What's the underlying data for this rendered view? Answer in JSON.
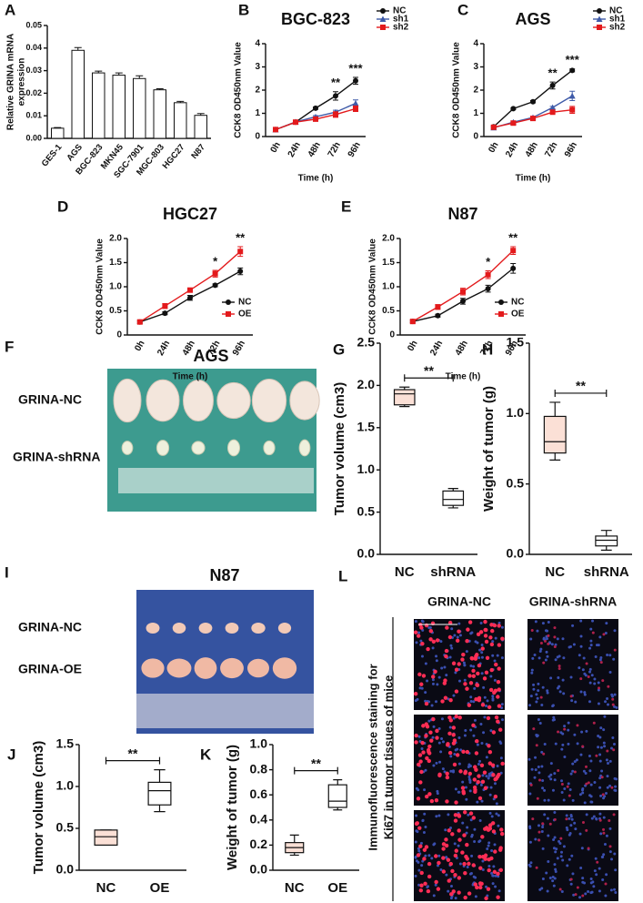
{
  "chart_data": [
    {
      "type": "bar",
      "panel": "A",
      "y_label": [
        "Relative GRINA mRNA",
        "expression"
      ],
      "categories": [
        "GES-1",
        "AGS",
        "BGC-823",
        "MKN45",
        "SGC-7901",
        "MGC-803",
        "HGC27",
        "N87"
      ],
      "values": [
        0.0045,
        0.039,
        0.029,
        0.028,
        0.0265,
        0.0215,
        0.0158,
        0.0102
      ],
      "errors": [
        0.0003,
        0.0012,
        0.0008,
        0.001,
        0.0012,
        0.0005,
        0.0006,
        0.0008
      ],
      "color": "#ffffff",
      "ylim": [
        0,
        0.05
      ],
      "yticks": [
        {
          "value": 0,
          "label": "0.00"
        },
        {
          "value": 0.01,
          "label": "0.01"
        },
        {
          "value": 0.02,
          "label": "0.02"
        },
        {
          "value": 0.03,
          "label": "0.03"
        },
        {
          "value": 0.04,
          "label": "0.04"
        },
        {
          "value": 0.05,
          "label": "0.05"
        }
      ]
    },
    {
      "type": "line",
      "panel": "B",
      "title": "BGC-823",
      "y_label": "CCK8 OD450nm Value",
      "x_label": "Time (h)",
      "categories": [
        "0h",
        "24h",
        "48h",
        "72h",
        "96h"
      ],
      "ylim": [
        0,
        4
      ],
      "yticks": [
        0,
        1,
        2,
        3,
        4
      ],
      "legend": "upper right",
      "series": [
        {
          "name": "NC",
          "color": "#111111",
          "marker": "circle",
          "values": [
            0.3,
            0.62,
            1.22,
            1.75,
            2.4
          ],
          "errors": [
            0.05,
            0.04,
            0.05,
            0.18,
            0.15
          ]
        },
        {
          "name": "sh1",
          "color": "#3f5ba9",
          "marker": "triangle",
          "values": [
            0.3,
            0.63,
            0.85,
            1.05,
            1.43
          ],
          "errors": [
            0.05,
            0.04,
            0.05,
            0.08,
            0.15
          ]
        },
        {
          "name": "sh2",
          "color": "#e31a1c",
          "marker": "square",
          "values": [
            0.3,
            0.62,
            0.75,
            0.95,
            1.2
          ],
          "errors": [
            0.05,
            0.04,
            0.05,
            0.12,
            0.12
          ]
        }
      ],
      "annotations": [
        {
          "text": "**",
          "at": "72h"
        },
        {
          "text": "***",
          "at": "96h"
        }
      ]
    },
    {
      "type": "line",
      "panel": "C",
      "title": "AGS",
      "y_label": "CCK8 OD450nm Value",
      "x_label": "Time (h)",
      "categories": [
        "0h",
        "24h",
        "48h",
        "72h",
        "96h"
      ],
      "ylim": [
        0,
        4
      ],
      "yticks": [
        0,
        1,
        2,
        3,
        4
      ],
      "legend": "upper right",
      "series": [
        {
          "name": "NC",
          "color": "#111111",
          "marker": "circle",
          "values": [
            0.42,
            1.2,
            1.5,
            2.2,
            2.85
          ],
          "errors": [
            0.05,
            0.04,
            0.05,
            0.15,
            0.06
          ]
        },
        {
          "name": "sh1",
          "color": "#3f5ba9",
          "marker": "triangle",
          "values": [
            0.38,
            0.62,
            0.82,
            1.25,
            1.75
          ],
          "errors": [
            0.05,
            0.04,
            0.05,
            0.05,
            0.2
          ]
        },
        {
          "name": "sh2",
          "color": "#e31a1c",
          "marker": "square",
          "values": [
            0.4,
            0.58,
            0.78,
            1.05,
            1.15
          ],
          "errors": [
            0.05,
            0.04,
            0.05,
            0.05,
            0.15
          ]
        }
      ],
      "annotations": [
        {
          "text": "**",
          "at": "72h"
        },
        {
          "text": "***",
          "at": "96h"
        }
      ]
    },
    {
      "type": "line",
      "panel": "D",
      "title": "HGC27",
      "y_label": "CCK8 OD450nm Value",
      "x_label": "Time (h)",
      "categories": [
        "0h",
        "24h",
        "48h",
        "72h",
        "96h"
      ],
      "ylim": [
        0,
        2
      ],
      "yticks": [
        0,
        0.5,
        {
          "value": 1,
          "label": "1.0"
        },
        1.5,
        {
          "value": 2,
          "label": "2.0"
        }
      ],
      "legend": "lower right",
      "series": [
        {
          "name": "NC",
          "color": "#111111",
          "marker": "circle",
          "values": [
            0.27,
            0.45,
            0.77,
            1.03,
            1.32
          ],
          "errors": [
            0.03,
            0.03,
            0.05,
            0.03,
            0.07
          ]
        },
        {
          "name": "OE",
          "color": "#e31a1c",
          "marker": "square",
          "values": [
            0.27,
            0.6,
            0.93,
            1.27,
            1.73
          ],
          "errors": [
            0.03,
            0.05,
            0.03,
            0.07,
            0.1
          ]
        }
      ],
      "annotations": [
        {
          "text": "*",
          "at": "72h"
        },
        {
          "text": "**",
          "at": "96h"
        }
      ]
    },
    {
      "type": "line",
      "panel": "E",
      "title": "N87",
      "y_label": "CCK8 OD450nm Value",
      "x_label": "Time (h)",
      "categories": [
        "0h",
        "24h",
        "48h",
        "72h",
        "96h"
      ],
      "ylim": [
        0,
        2
      ],
      "yticks": [
        0,
        0.5,
        {
          "value": 1,
          "label": "1.0"
        },
        1.5,
        {
          "value": 2,
          "label": "2.0"
        }
      ],
      "legend": "lower right",
      "series": [
        {
          "name": "NC",
          "color": "#111111",
          "marker": "circle",
          "values": [
            0.28,
            0.4,
            0.7,
            0.96,
            1.38
          ],
          "errors": [
            0.03,
            0.03,
            0.06,
            0.07,
            0.1
          ]
        },
        {
          "name": "OE",
          "color": "#e31a1c",
          "marker": "square",
          "values": [
            0.28,
            0.58,
            0.9,
            1.25,
            1.75
          ],
          "errors": [
            0.03,
            0.05,
            0.07,
            0.08,
            0.08
          ]
        }
      ],
      "annotations": [
        {
          "text": "*",
          "at": "72h"
        },
        {
          "text": "**",
          "at": "96h"
        }
      ]
    },
    {
      "type": "box",
      "panel": "G",
      "y_label": "Tumor volume (cm3)",
      "categories": [
        "NC",
        "shRNA"
      ],
      "colors": [
        "#fbe0d6",
        "#ffffff"
      ],
      "ylim": [
        0,
        2.5
      ],
      "yticks": [
        {
          "value": 0,
          "label": "0.0"
        },
        0.5,
        {
          "value": 1,
          "label": "1.0"
        },
        1.5,
        {
          "value": 2,
          "label": "2.0"
        },
        2.5
      ],
      "boxes": [
        {
          "min": 1.75,
          "q1": 1.77,
          "median": 1.9,
          "q3": 1.95,
          "max": 1.98
        },
        {
          "min": 0.55,
          "q1": 0.58,
          "median": 0.65,
          "q3": 0.75,
          "max": 0.78
        }
      ],
      "annotation": "**"
    },
    {
      "type": "box",
      "panel": "H",
      "y_label": "Weight of tumor (g)",
      "categories": [
        "NC",
        "shRNA"
      ],
      "colors": [
        "#fbe0d6",
        "#ffffff"
      ],
      "ylim": [
        0,
        1.5
      ],
      "yticks": [
        {
          "value": 0,
          "label": "0.0"
        },
        0.5,
        {
          "value": 1,
          "label": "1.0"
        },
        1.5
      ],
      "boxes": [
        {
          "min": 0.67,
          "q1": 0.72,
          "median": 0.8,
          "q3": 0.98,
          "max": 1.08
        },
        {
          "min": 0.03,
          "q1": 0.06,
          "median": 0.1,
          "q3": 0.13,
          "max": 0.17
        }
      ],
      "annotation": "**"
    },
    {
      "type": "box",
      "panel": "J",
      "y_label": "Tumor volume (cm3)",
      "categories": [
        "NC",
        "OE"
      ],
      "colors": [
        "#fbe0d6",
        "#ffffff"
      ],
      "ylim": [
        0,
        1.5
      ],
      "yticks": [
        {
          "value": 0,
          "label": "0.0"
        },
        0.5,
        {
          "value": 1,
          "label": "1.0"
        },
        1.5
      ],
      "boxes": [
        {
          "min": 0.3,
          "q1": 0.3,
          "median": 0.4,
          "q3": 0.48,
          "max": 0.48
        },
        {
          "min": 0.7,
          "q1": 0.78,
          "median": 0.95,
          "q3": 1.05,
          "max": 1.2
        }
      ],
      "annotation": "**"
    },
    {
      "type": "box",
      "panel": "K",
      "y_label": "Weight of tumor (g)",
      "categories": [
        "NC",
        "OE"
      ],
      "colors": [
        "#fbe0d6",
        "#ffffff"
      ],
      "ylim": [
        0,
        1
      ],
      "yticks": [
        {
          "value": 0,
          "label": "0.0"
        },
        0.2,
        0.4,
        0.6,
        0.8,
        {
          "value": 1,
          "label": "1.0"
        }
      ],
      "boxes": [
        {
          "min": 0.12,
          "q1": 0.14,
          "median": 0.18,
          "q3": 0.22,
          "max": 0.28
        },
        {
          "min": 0.48,
          "q1": 0.5,
          "median": 0.55,
          "q3": 0.68,
          "max": 0.72
        }
      ],
      "annotation": "**"
    }
  ],
  "photos": {
    "F": {
      "panel": "F",
      "title": "AGS",
      "rows": [
        "GRINA-NC",
        "GRINA-shRNA"
      ]
    },
    "I": {
      "panel": "I",
      "title": "N87",
      "rows": [
        "GRINA-NC",
        "GRINA-OE"
      ]
    },
    "L": {
      "panel": "L",
      "columns": [
        "GRINA-NC",
        "GRINA-shRNA"
      ],
      "side_label": [
        "Immunofluorescence staining for",
        "Ki67 in tumor tissues of mice"
      ]
    }
  }
}
